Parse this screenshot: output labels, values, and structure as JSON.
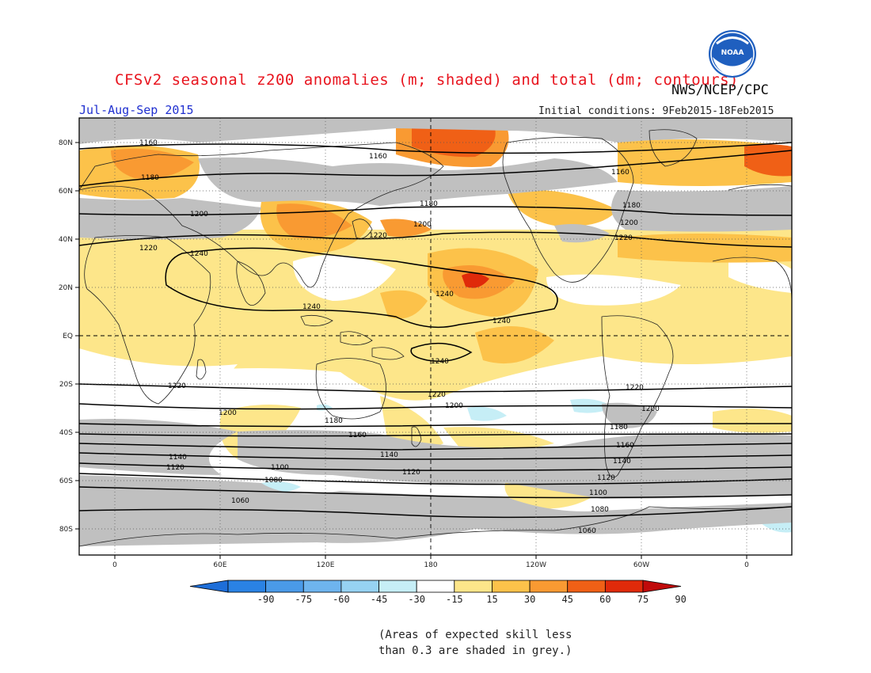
{
  "header": {
    "title": "CFSv2 seasonal z200 anomalies (m; shaded) and total (dm; contours)",
    "agency": "NWS/NCEP/CPC",
    "season": "Jul-Aug-Sep 2015",
    "initial_conditions": "Initial conditions: 9Feb2015-18Feb2015",
    "logo_text": "NOAA"
  },
  "map": {
    "lat_labels": [
      "80N",
      "60N",
      "40N",
      "20N",
      "EQ",
      "20S",
      "40S",
      "60S",
      "80S"
    ],
    "lon_labels": [
      "0",
      "60E",
      "120E",
      "180",
      "120W",
      "60W",
      "0"
    ],
    "contour_labels": [
      "1060",
      "1080",
      "1100",
      "1120",
      "1140",
      "1160",
      "1180",
      "1200",
      "1220",
      "1240"
    ]
  },
  "colorbar": {
    "labels": [
      "-90",
      "-75",
      "-60",
      "-45",
      "-30",
      "-15",
      "15",
      "30",
      "45",
      "60",
      "75",
      "90"
    ],
    "colors": [
      "#1e6ed8",
      "#2a82e4",
      "#4a9ae8",
      "#6eb4ee",
      "#96d2f2",
      "#c6eef6",
      "#ffffff",
      "#fde68a",
      "#fcc24a",
      "#f99a32",
      "#f06016",
      "#e02a0a",
      "#c00a0a"
    ]
  },
  "note": {
    "line1": "(Areas of expected skill less",
    "line2": "than 0.3 are shaded in grey.)"
  }
}
